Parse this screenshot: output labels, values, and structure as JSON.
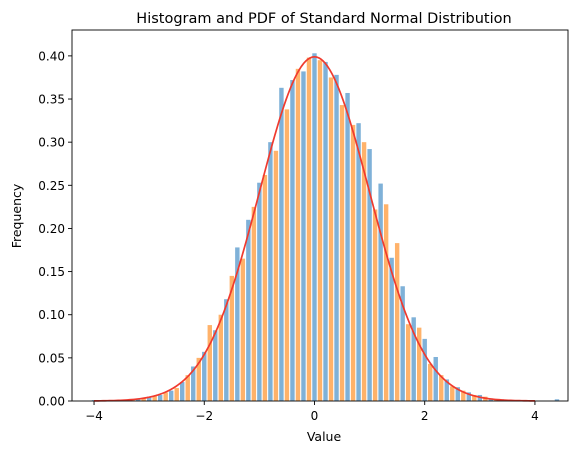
{
  "chart_data": {
    "type": "bar",
    "title": "Histogram and PDF of Standard Normal Distribution",
    "xlabel": "Value",
    "ylabel": "Frequency",
    "xlim": [
      -4.4,
      4.6
    ],
    "ylim": [
      0,
      0.43
    ],
    "xticks": [
      -4,
      -2,
      0,
      2,
      4
    ],
    "yticks": [
      0.0,
      0.05,
      0.1,
      0.15,
      0.2,
      0.25,
      0.3,
      0.35,
      0.4
    ],
    "grid": false,
    "bin_width": 0.2,
    "series": [
      {
        "color": "#7fb1d8",
        "kind": "histogram",
        "x": [
          -4.0,
          -3.8,
          -3.6,
          -3.4,
          -3.2,
          -3.0,
          -2.8,
          -2.6,
          -2.4,
          -2.2,
          -2.0,
          -1.8,
          -1.6,
          -1.4,
          -1.2,
          -1.0,
          -0.8,
          -0.6,
          -0.4,
          -0.2,
          0.0,
          0.2,
          0.4,
          0.6,
          0.8,
          1.0,
          1.2,
          1.4,
          1.6,
          1.8,
          2.0,
          2.2,
          2.4,
          2.6,
          2.8,
          3.0,
          3.2,
          3.4,
          3.6,
          4.4
        ],
        "values": [
          0.001,
          0.0,
          0.001,
          0.001,
          0.002,
          0.005,
          0.007,
          0.012,
          0.022,
          0.04,
          0.057,
          0.082,
          0.118,
          0.178,
          0.21,
          0.253,
          0.3,
          0.363,
          0.372,
          0.382,
          0.403,
          0.393,
          0.378,
          0.357,
          0.322,
          0.292,
          0.252,
          0.166,
          0.133,
          0.097,
          0.072,
          0.051,
          0.025,
          0.016,
          0.01,
          0.007,
          0.003,
          0.002,
          0.001,
          0.002
        ]
      },
      {
        "color": "#ffb26a",
        "kind": "histogram",
        "x": [
          -3.9,
          -3.7,
          -3.5,
          -3.3,
          -3.1,
          -2.9,
          -2.7,
          -2.5,
          -2.3,
          -2.1,
          -1.9,
          -1.7,
          -1.5,
          -1.3,
          -1.1,
          -0.9,
          -0.7,
          -0.5,
          -0.3,
          -0.1,
          0.1,
          0.3,
          0.5,
          0.7,
          0.9,
          1.1,
          1.3,
          1.5,
          1.7,
          1.9,
          2.1,
          2.3,
          2.5,
          2.7,
          2.9,
          3.1,
          3.3,
          3.5,
          3.7
        ],
        "values": [
          0.0,
          0.001,
          0.001,
          0.001,
          0.003,
          0.006,
          0.01,
          0.015,
          0.03,
          0.05,
          0.088,
          0.1,
          0.145,
          0.165,
          0.225,
          0.262,
          0.29,
          0.338,
          0.385,
          0.398,
          0.395,
          0.375,
          0.343,
          0.32,
          0.3,
          0.222,
          0.228,
          0.183,
          0.089,
          0.085,
          0.043,
          0.03,
          0.017,
          0.012,
          0.007,
          0.005,
          0.002,
          0.001,
          0.001
        ]
      },
      {
        "color": "#f03a2e",
        "kind": "line",
        "function": "standard_normal_pdf",
        "x_range": [
          -4,
          4
        ]
      }
    ]
  }
}
